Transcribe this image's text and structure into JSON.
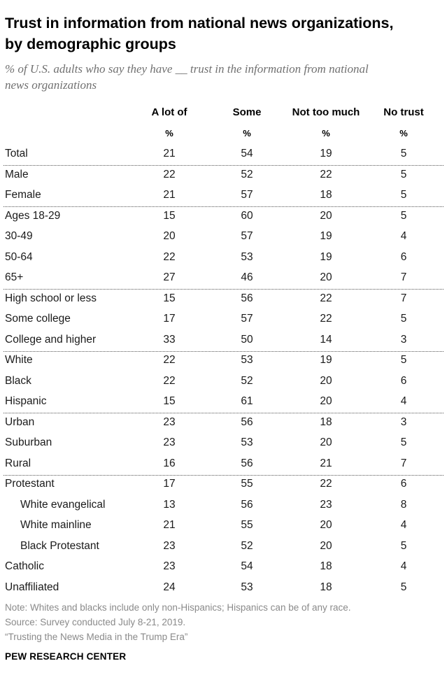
{
  "title_line1": "Trust in information from national news organizations,",
  "title_line2": "by demographic groups",
  "subtitle_line1": "% of U.S. adults who say they have __ trust in the information from national",
  "subtitle_line2": "news organizations",
  "chart_data": {
    "type": "table",
    "columns": [
      "A lot of",
      "Some",
      "Not too much",
      "No trust"
    ],
    "units": [
      "%",
      "%",
      "%",
      "%"
    ],
    "rows": [
      {
        "label": "Total",
        "values": [
          21,
          54,
          19,
          5
        ],
        "group": 0,
        "indent": false
      },
      {
        "label": "Male",
        "values": [
          22,
          52,
          22,
          5
        ],
        "group": 1,
        "indent": false
      },
      {
        "label": "Female",
        "values": [
          21,
          57,
          18,
          5
        ],
        "group": 1,
        "indent": false
      },
      {
        "label": "Ages 18-29",
        "values": [
          15,
          60,
          20,
          5
        ],
        "group": 2,
        "indent": false
      },
      {
        "label": "30-49",
        "values": [
          20,
          57,
          19,
          4
        ],
        "group": 2,
        "indent": false
      },
      {
        "label": "50-64",
        "values": [
          22,
          53,
          19,
          6
        ],
        "group": 2,
        "indent": false
      },
      {
        "label": "65+",
        "values": [
          27,
          46,
          20,
          7
        ],
        "group": 2,
        "indent": false
      },
      {
        "label": "High school or less",
        "values": [
          15,
          56,
          22,
          7
        ],
        "group": 3,
        "indent": false
      },
      {
        "label": "Some college",
        "values": [
          17,
          57,
          22,
          5
        ],
        "group": 3,
        "indent": false
      },
      {
        "label": "College and higher",
        "values": [
          33,
          50,
          14,
          3
        ],
        "group": 3,
        "indent": false
      },
      {
        "label": "White",
        "values": [
          22,
          53,
          19,
          5
        ],
        "group": 4,
        "indent": false
      },
      {
        "label": "Black",
        "values": [
          22,
          52,
          20,
          6
        ],
        "group": 4,
        "indent": false
      },
      {
        "label": "Hispanic",
        "values": [
          15,
          61,
          20,
          4
        ],
        "group": 4,
        "indent": false
      },
      {
        "label": "Urban",
        "values": [
          23,
          56,
          18,
          3
        ],
        "group": 5,
        "indent": false
      },
      {
        "label": "Suburban",
        "values": [
          23,
          53,
          20,
          5
        ],
        "group": 5,
        "indent": false
      },
      {
        "label": "Rural",
        "values": [
          16,
          56,
          21,
          7
        ],
        "group": 5,
        "indent": false
      },
      {
        "label": "Protestant",
        "values": [
          17,
          55,
          22,
          6
        ],
        "group": 6,
        "indent": false
      },
      {
        "label": "White evangelical",
        "values": [
          13,
          56,
          23,
          8
        ],
        "group": 6,
        "indent": true
      },
      {
        "label": "White mainline",
        "values": [
          21,
          55,
          20,
          4
        ],
        "group": 6,
        "indent": true
      },
      {
        "label": "Black Protestant",
        "values": [
          23,
          52,
          20,
          5
        ],
        "group": 6,
        "indent": true
      },
      {
        "label": "Catholic",
        "values": [
          23,
          54,
          18,
          4
        ],
        "group": 6,
        "indent": false
      },
      {
        "label": "Unaffiliated",
        "values": [
          24,
          53,
          18,
          5
        ],
        "group": 6,
        "indent": false
      }
    ]
  },
  "notes": {
    "note": "Note: Whites and blacks include only non-Hispanics; Hispanics can be of any race.",
    "source": "Source: Survey conducted July 8-21, 2019.",
    "report": "“Trusting the News Media in the Trump Era”"
  },
  "brand": "PEW RESEARCH CENTER"
}
